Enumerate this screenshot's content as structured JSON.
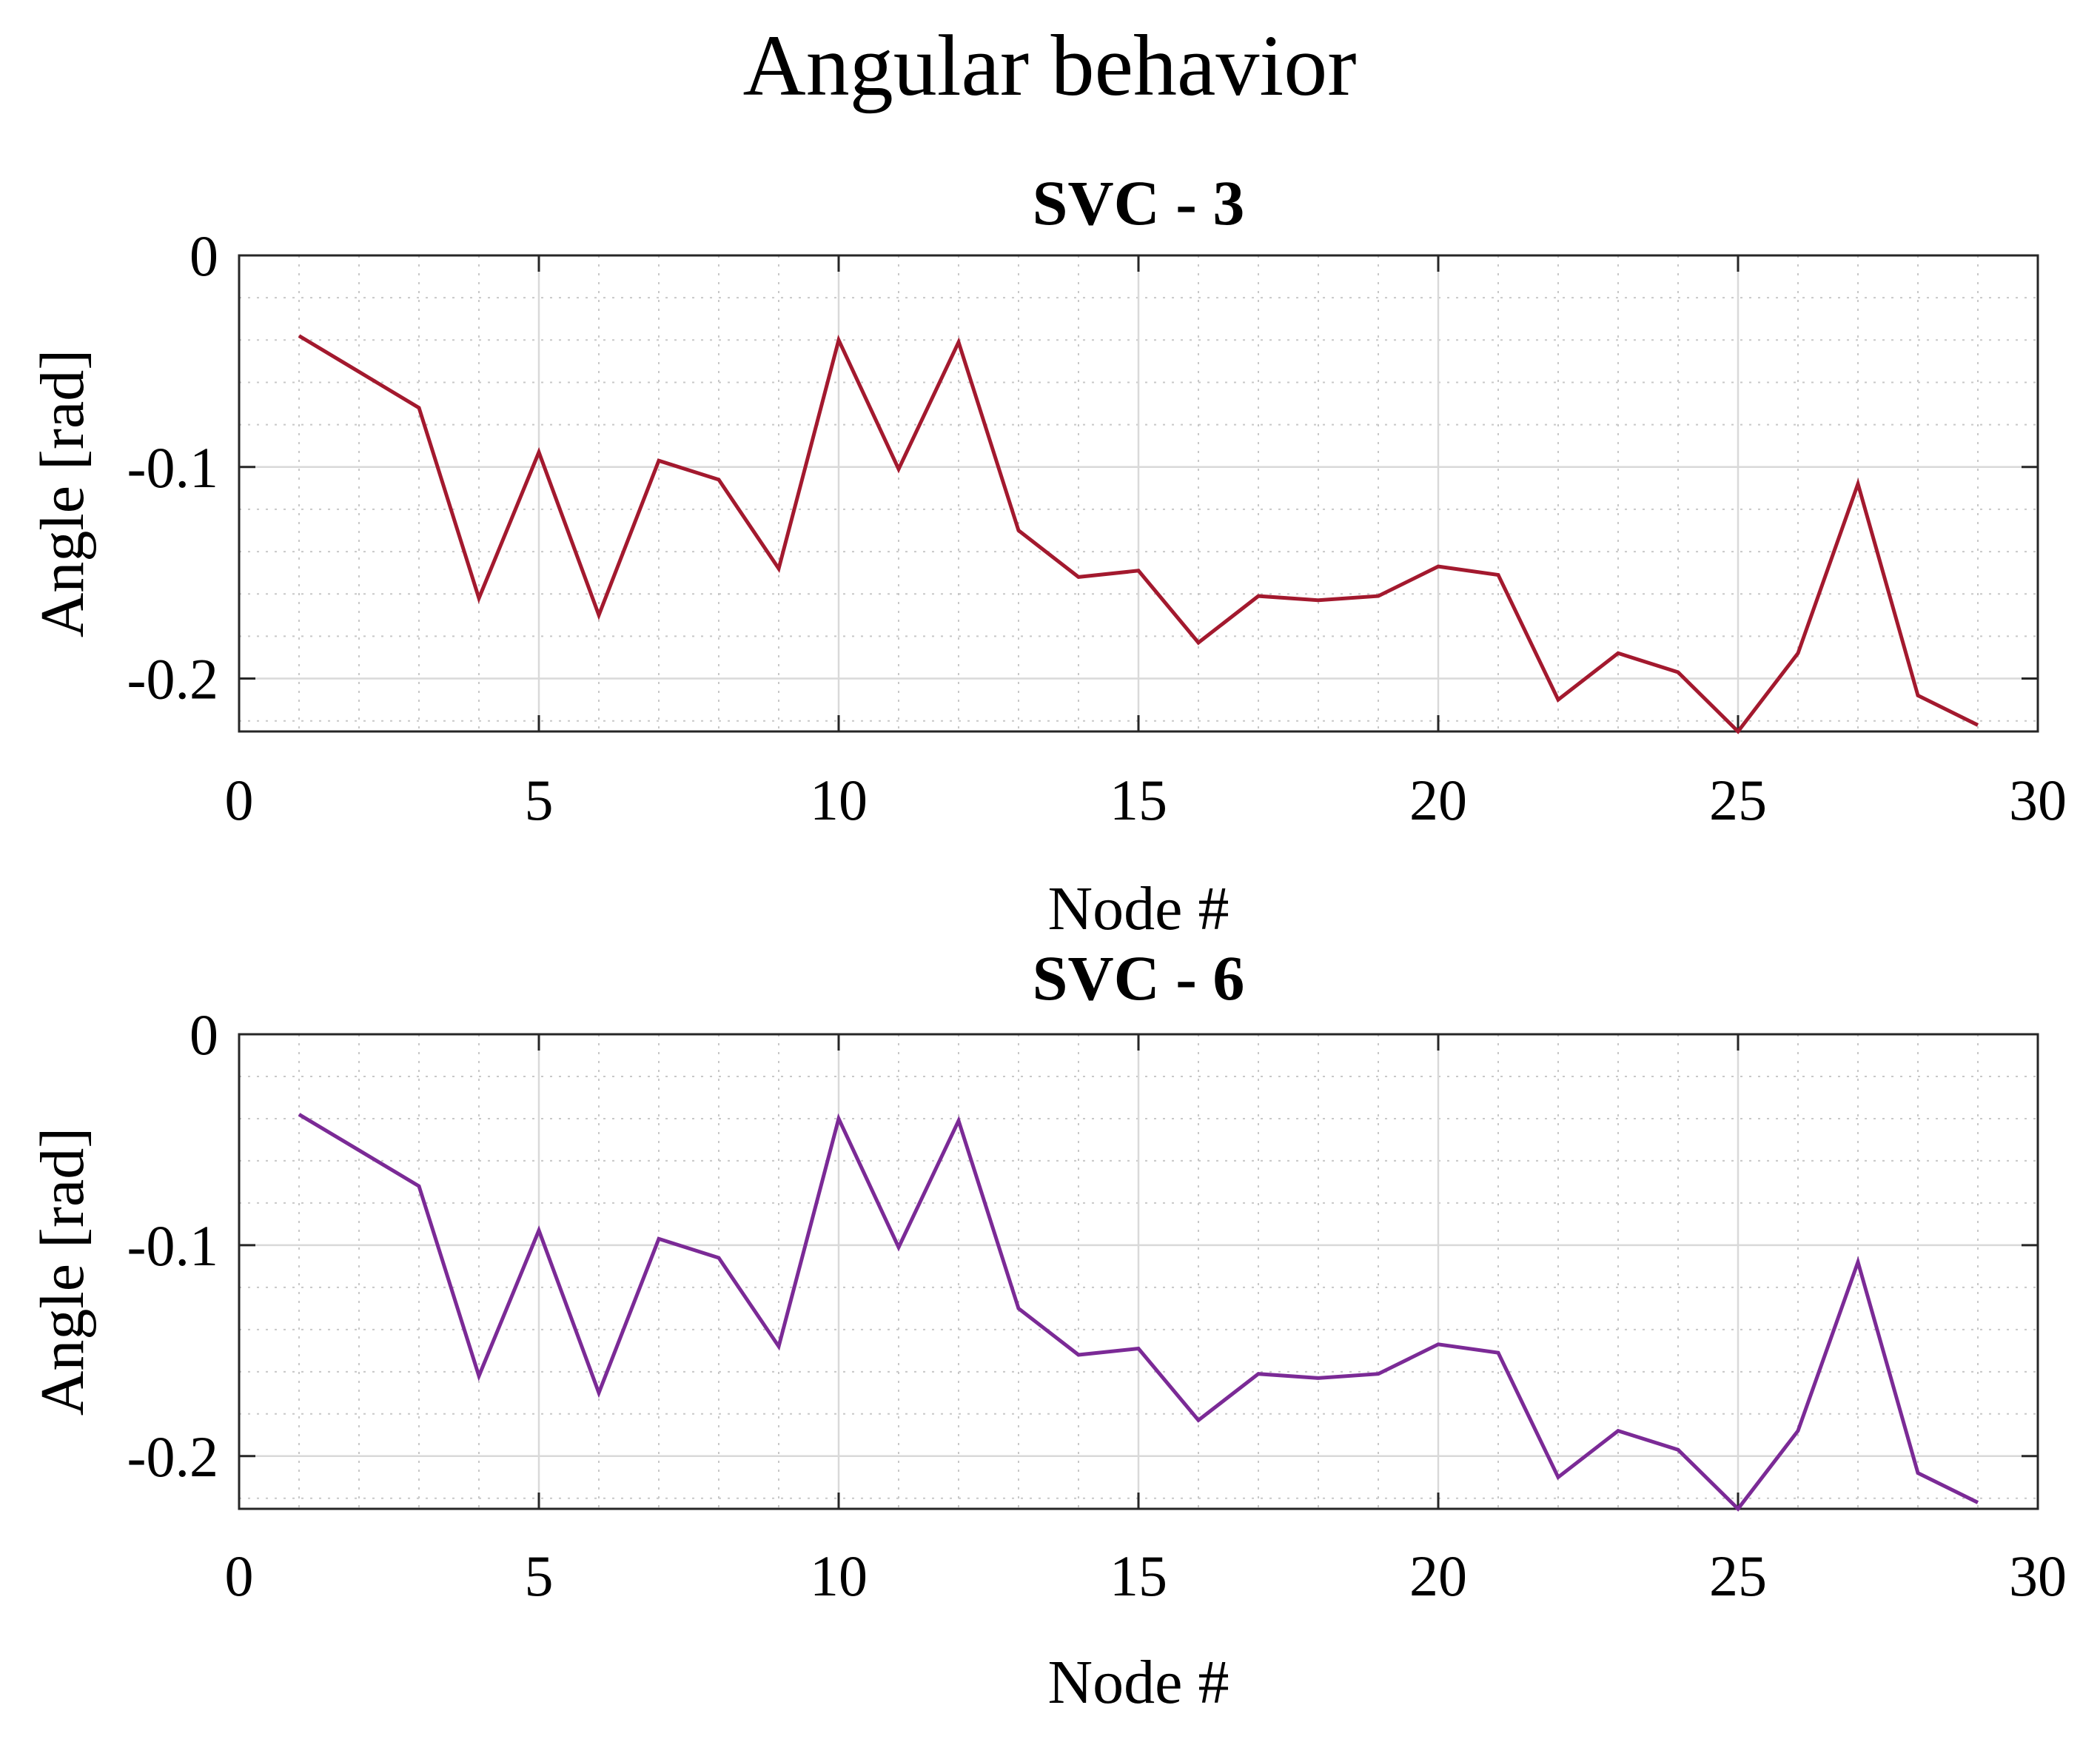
{
  "figure": {
    "title": "Angular behavior"
  },
  "chart_data": [
    {
      "type": "line",
      "title": "SVC - 3",
      "xlabel": "Node #",
      "ylabel": "Angle  [rad]",
      "xlim": [
        0,
        30
      ],
      "ylim": [
        -0.225,
        0
      ],
      "xticks": [
        0,
        5,
        10,
        15,
        20,
        25,
        30
      ],
      "xtick_labels": [
        "0",
        "5",
        "10",
        "15",
        "20",
        "25",
        "30"
      ],
      "yticks": [
        0,
        -0.1,
        -0.2
      ],
      "ytick_labels": [
        "0",
        "-0.1",
        "-0.2"
      ],
      "grid": true,
      "series": [
        {
          "name": "SVC - 3",
          "color": "#a3192e",
          "x": [
            1,
            2,
            3,
            4,
            5,
            6,
            7,
            8,
            9,
            10,
            11,
            12,
            13,
            14,
            15,
            16,
            17,
            18,
            19,
            20,
            21,
            22,
            23,
            24,
            25,
            26,
            27,
            28,
            29
          ],
          "y": [
            -0.038,
            -0.055,
            -0.072,
            -0.162,
            -0.093,
            -0.17,
            -0.097,
            -0.106,
            -0.148,
            -0.04,
            -0.101,
            -0.041,
            -0.13,
            -0.152,
            -0.149,
            -0.183,
            -0.161,
            -0.163,
            -0.161,
            -0.147,
            -0.151,
            -0.21,
            -0.188,
            -0.197,
            -0.225,
            -0.188,
            -0.108,
            -0.208,
            -0.222
          ]
        }
      ]
    },
    {
      "type": "line",
      "title": "SVC - 6",
      "xlabel": "Node #",
      "ylabel": "Angle  [rad]",
      "xlim": [
        0,
        30
      ],
      "ylim": [
        -0.225,
        0
      ],
      "xticks": [
        0,
        5,
        10,
        15,
        20,
        25,
        30
      ],
      "xtick_labels": [
        "0",
        "5",
        "10",
        "15",
        "20",
        "25",
        "30"
      ],
      "yticks": [
        0,
        -0.1,
        -0.2
      ],
      "ytick_labels": [
        "0",
        "-0.1",
        "-0.2"
      ],
      "grid": true,
      "series": [
        {
          "name": "SVC - 6",
          "color": "#7b2a96",
          "x": [
            1,
            2,
            3,
            4,
            5,
            6,
            7,
            8,
            9,
            10,
            11,
            12,
            13,
            14,
            15,
            16,
            17,
            18,
            19,
            20,
            21,
            22,
            23,
            24,
            25,
            26,
            27,
            28,
            29
          ],
          "y": [
            -0.038,
            -0.055,
            -0.072,
            -0.162,
            -0.093,
            -0.17,
            -0.097,
            -0.106,
            -0.148,
            -0.04,
            -0.101,
            -0.041,
            -0.13,
            -0.152,
            -0.149,
            -0.183,
            -0.161,
            -0.163,
            -0.161,
            -0.147,
            -0.151,
            -0.21,
            -0.188,
            -0.197,
            -0.225,
            -0.188,
            -0.108,
            -0.208,
            -0.222
          ]
        }
      ]
    }
  ]
}
